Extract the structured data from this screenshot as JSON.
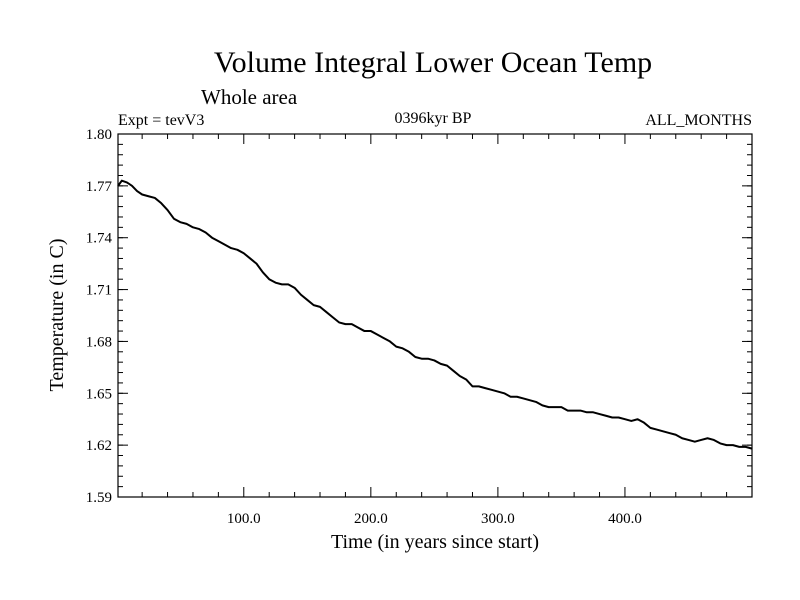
{
  "chart_data": {
    "type": "line",
    "title": "Volume Integral Lower Ocean Temp",
    "subtitle": "Whole area",
    "experiment": "Expt = tevV3",
    "period": "0396kyr BP",
    "months": "ALL_MONTHS",
    "xlabel": "Time (in years since start)",
    "ylabel": "Temperature (in C)",
    "xlim": [
      1,
      500
    ],
    "ylim": [
      1.59,
      1.8
    ],
    "x_ticks": [
      100,
      200,
      300,
      400
    ],
    "x_tick_labels": [
      "100.0",
      "200.0",
      "300.0",
      "400.0"
    ],
    "y_ticks": [
      1.59,
      1.62,
      1.65,
      1.68,
      1.71,
      1.74,
      1.77,
      1.8
    ],
    "y_tick_labels": [
      "1.59",
      "1.62",
      "1.65",
      "1.68",
      "1.71",
      "1.74",
      "1.77",
      "1.80"
    ],
    "series": [
      {
        "name": "Volume Integral Lower Ocean Temp",
        "color": "#000000",
        "x": [
          1,
          4,
          8,
          12,
          16,
          20,
          25,
          30,
          35,
          40,
          45,
          50,
          55,
          60,
          65,
          70,
          75,
          80,
          85,
          90,
          95,
          100,
          105,
          110,
          115,
          120,
          125,
          130,
          135,
          140,
          145,
          150,
          155,
          160,
          165,
          170,
          175,
          180,
          185,
          190,
          195,
          200,
          205,
          210,
          215,
          220,
          225,
          230,
          235,
          240,
          245,
          250,
          255,
          260,
          265,
          270,
          275,
          280,
          285,
          290,
          295,
          300,
          305,
          310,
          315,
          320,
          325,
          330,
          335,
          340,
          345,
          350,
          355,
          360,
          365,
          370,
          375,
          380,
          385,
          390,
          395,
          400,
          405,
          410,
          415,
          420,
          425,
          430,
          435,
          440,
          445,
          450,
          455,
          460,
          465,
          470,
          475,
          480,
          485,
          490,
          495,
          500
        ],
        "values": [
          1.77,
          1.773,
          1.772,
          1.77,
          1.767,
          1.765,
          1.764,
          1.763,
          1.76,
          1.756,
          1.751,
          1.749,
          1.748,
          1.746,
          1.745,
          1.743,
          1.74,
          1.738,
          1.736,
          1.734,
          1.733,
          1.731,
          1.728,
          1.725,
          1.72,
          1.716,
          1.714,
          1.713,
          1.713,
          1.711,
          1.707,
          1.704,
          1.701,
          1.7,
          1.697,
          1.694,
          1.691,
          1.69,
          1.69,
          1.688,
          1.686,
          1.686,
          1.684,
          1.682,
          1.68,
          1.677,
          1.676,
          1.674,
          1.671,
          1.67,
          1.67,
          1.669,
          1.667,
          1.666,
          1.663,
          1.66,
          1.658,
          1.654,
          1.654,
          1.653,
          1.652,
          1.651,
          1.65,
          1.648,
          1.648,
          1.647,
          1.646,
          1.645,
          1.643,
          1.642,
          1.642,
          1.642,
          1.64,
          1.64,
          1.64,
          1.639,
          1.639,
          1.638,
          1.637,
          1.636,
          1.636,
          1.635,
          1.634,
          1.635,
          1.633,
          1.63,
          1.629,
          1.628,
          1.627,
          1.626,
          1.624,
          1.623,
          1.622,
          1.623,
          1.624,
          1.623,
          1.621,
          1.62,
          1.62,
          1.619,
          1.619,
          1.618
        ]
      }
    ]
  }
}
